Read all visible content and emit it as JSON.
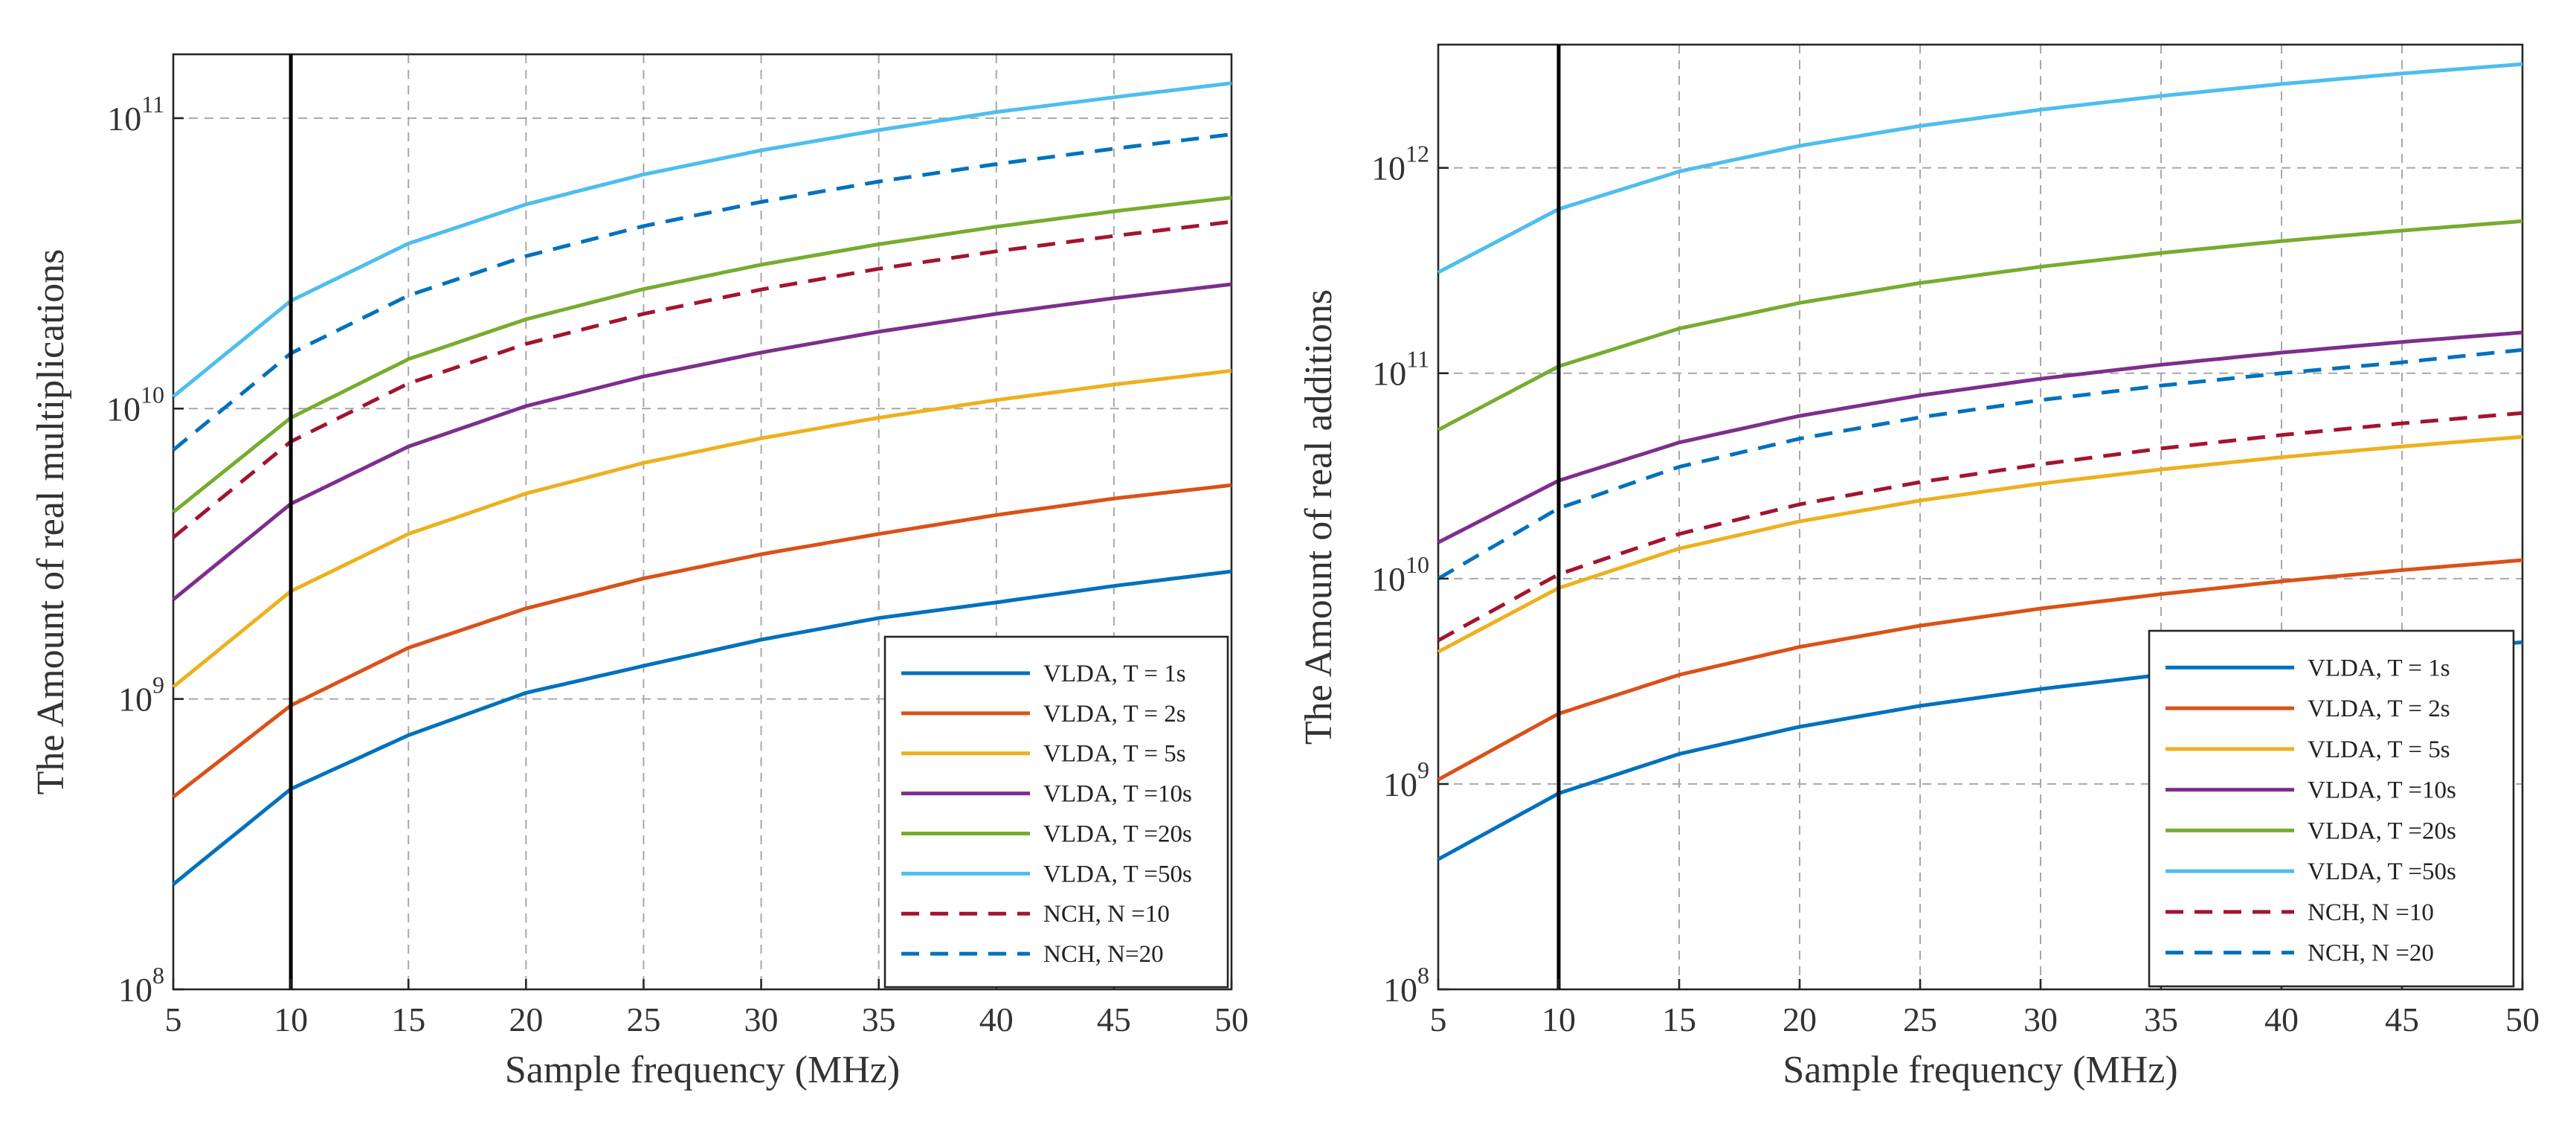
{
  "figure": {
    "panel_labels": [
      "multiplications",
      "additions"
    ]
  },
  "chart_data": [
    {
      "type": "line",
      "yscale": "log",
      "title": "",
      "xlabel": "Sample frequency (MHz)",
      "ylabel": "The Amount of real multiplications",
      "xlim": [
        5,
        50
      ],
      "xticks": [
        5,
        10,
        15,
        20,
        25,
        30,
        35,
        40,
        45,
        50
      ],
      "ylim_exp": [
        8,
        11.22
      ],
      "yticks": [
        {
          "base": "10",
          "exp": "8",
          "value": 8
        },
        {
          "base": "10",
          "exp": "9",
          "value": 9
        },
        {
          "base": "10",
          "exp": "10",
          "value": 10
        },
        {
          "base": "10",
          "exp": "11",
          "value": 11
        }
      ],
      "grid": true,
      "vline_x": 10,
      "legend_position": "bottom-right",
      "x": [
        5,
        10,
        15,
        20,
        25,
        30,
        35,
        40,
        45,
        50
      ],
      "series": [
        {
          "name": "VLDA, T = 1s",
          "color": "#0072BD",
          "style": "solid",
          "values": [
            230000000.0,
            490000000.0,
            750000000.0,
            1050000000.0,
            1300000000.0,
            1600000000.0,
            1900000000.0,
            2150000000.0,
            2450000000.0,
            2750000000.0
          ]
        },
        {
          "name": "VLDA, T = 2s",
          "color": "#D95319",
          "style": "solid",
          "values": [
            460000000.0,
            950000000.0,
            1500000000.0,
            2050000000.0,
            2600000000.0,
            3150000000.0,
            3700000000.0,
            4300000000.0,
            4900000000.0,
            5450000000.0
          ]
        },
        {
          "name": "VLDA, T = 5s",
          "color": "#EDB120",
          "style": "solid",
          "values": [
            1100000000.0,
            2350000000.0,
            3700000000.0,
            5100000000.0,
            6500000000.0,
            7900000000.0,
            9300000000.0,
            10700000000.0,
            12100000000.0,
            13500000000.0
          ]
        },
        {
          "name": "VLDA, T =10s",
          "color": "#7E2F8E",
          "style": "solid",
          "values": [
            2200000000.0,
            4700000000.0,
            7400000000.0,
            10200000000.0,
            12900000000.0,
            15600000000.0,
            18400000000.0,
            21200000000.0,
            24000000000.0,
            26800000000.0
          ]
        },
        {
          "name": "VLDA, T =20s",
          "color": "#77AC30",
          "style": "solid",
          "values": [
            4400000000.0,
            9300000000.0,
            14800000000.0,
            20300000000.0,
            25800000000.0,
            31300000000.0,
            36800000000.0,
            42300000000.0,
            47800000000.0,
            53300000000.0
          ]
        },
        {
          "name": "VLDA, T =50s",
          "color": "#4DBEEE",
          "style": "solid",
          "values": [
            11000000000.0,
            23500000000.0,
            37000000000.0,
            50500000000.0,
            64000000000.0,
            77500000000.0,
            91000000000.0,
            105000000000.0,
            118000000000.0,
            132000000000.0
          ]
        },
        {
          "name": "NCH,  N =10",
          "color": "#A2142F",
          "style": "dashed",
          "values": [
            3600000000.0,
            7700000000.0,
            12200000000.0,
            16700000000.0,
            21200000000.0,
            25700000000.0,
            30300000000.0,
            34800000000.0,
            39300000000.0,
            44000000000.0
          ]
        },
        {
          "name": "NCH,  N=20",
          "color": "#0072BD",
          "style": "dashed",
          "values": [
            7200000000.0,
            15500000000.0,
            24500000000.0,
            33500000000.0,
            42500000000.0,
            51500000000.0,
            60500000000.0,
            69500000000.0,
            78500000000.0,
            88000000000.0
          ]
        }
      ]
    },
    {
      "type": "line",
      "yscale": "log",
      "title": "",
      "xlabel": "Sample frequency (MHz)",
      "ylabel": "The Amount of real additions",
      "xlim": [
        5,
        50
      ],
      "xticks": [
        5,
        10,
        15,
        20,
        25,
        30,
        35,
        40,
        45,
        50
      ],
      "ylim_exp": [
        8,
        12.6
      ],
      "yticks": [
        {
          "base": "10",
          "exp": "8",
          "value": 8
        },
        {
          "base": "10",
          "exp": "9",
          "value": 9
        },
        {
          "base": "10",
          "exp": "10",
          "value": 10
        },
        {
          "base": "10",
          "exp": "11",
          "value": 11
        },
        {
          "base": "10",
          "exp": "12",
          "value": 12
        }
      ],
      "grid": true,
      "vline_x": 10,
      "legend_position": "bottom-right",
      "x": [
        5,
        10,
        15,
        20,
        25,
        30,
        35,
        40,
        45,
        50
      ],
      "series": [
        {
          "name": "VLDA, T = 1s",
          "color": "#0072BD",
          "style": "solid",
          "values": [
            430000000.0,
            900000000.0,
            1400000000.0,
            1900000000.0,
            2400000000.0,
            2900000000.0,
            3400000000.0,
            3900000000.0,
            4400000000.0,
            4900000000.0
          ]
        },
        {
          "name": "VLDA, T = 2s",
          "color": "#D95319",
          "style": "solid",
          "values": [
            1050000000.0,
            2200000000.0,
            3400000000.0,
            4650000000.0,
            5900000000.0,
            7150000000.0,
            8400000000.0,
            9700000000.0,
            11000000000.0,
            12300000000.0
          ]
        },
        {
          "name": "VLDA, T = 5s",
          "color": "#EDB120",
          "style": "solid",
          "values": [
            4400000000.0,
            9000000000.0,
            14000000000.0,
            19000000000.0,
            24000000000.0,
            29000000000.0,
            34000000000.0,
            39000000000.0,
            44000000000.0,
            49000000000.0
          ]
        },
        {
          "name": "VLDA, T =10s",
          "color": "#7E2F8E",
          "style": "solid",
          "values": [
            15000000000.0,
            30000000000.0,
            46000000000.0,
            62000000000.0,
            78000000000.0,
            94000000000.0,
            110000000000.0,
            126000000000.0,
            142000000000.0,
            158000000000.0
          ]
        },
        {
          "name": "VLDA, T =20s",
          "color": "#77AC30",
          "style": "solid",
          "values": [
            53000000000.0,
            108000000000.0,
            165000000000.0,
            220000000000.0,
            275000000000.0,
            330000000000.0,
            385000000000.0,
            440000000000.0,
            495000000000.0,
            550000000000.0
          ]
        },
        {
          "name": "VLDA, T =50s",
          "color": "#4DBEEE",
          "style": "solid",
          "values": [
            310000000000.0,
            630000000000.0,
            960000000000.0,
            1280000000000.0,
            1600000000000.0,
            1920000000000.0,
            2240000000000.0,
            2560000000000.0,
            2880000000000.0,
            3200000000000.0
          ]
        },
        {
          "name": "NCH, N =10",
          "color": "#A2142F",
          "style": "dashed",
          "values": [
            5000000000.0,
            10500000000.0,
            16500000000.0,
            23000000000.0,
            29500000000.0,
            36000000000.0,
            43000000000.0,
            50000000000.0,
            57000000000.0,
            64000000000.0
          ]
        },
        {
          "name": "NCH, N =20",
          "color": "#0072BD",
          "style": "dashed",
          "values": [
            10000000000.0,
            22000000000.0,
            35000000000.0,
            48000000000.0,
            61000000000.0,
            74000000000.0,
            87000000000.0,
            100000000000.0,
            113000000000.0,
            130000000000.0
          ]
        }
      ]
    }
  ]
}
